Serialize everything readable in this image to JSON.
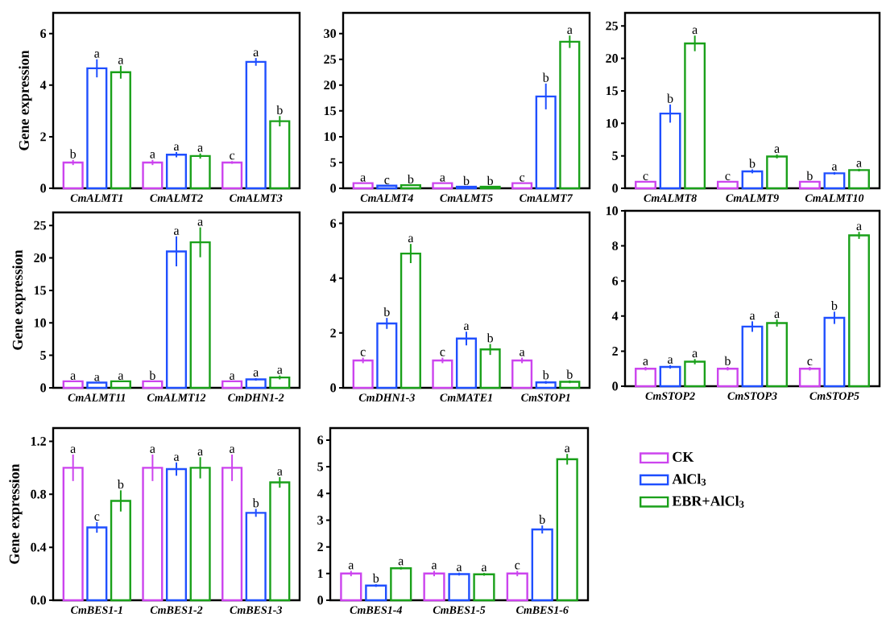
{
  "chart_data": [
    {
      "type": "bar",
      "ylabel": "Gene expression",
      "categories": [
        "CmALMT1",
        "CmALMT2",
        "CmALMT3"
      ],
      "ylim": [
        0,
        6.8
      ],
      "yticks": [
        0,
        2,
        4,
        6
      ],
      "series": [
        {
          "color": "#cc44ee",
          "values": [
            1.0,
            1.0,
            1.0
          ],
          "errors": [
            0.1,
            0.1,
            0.05
          ],
          "value_labels": [
            "b",
            "a",
            "c"
          ]
        },
        {
          "color": "#1f4fff",
          "values": [
            4.65,
            1.3,
            4.9
          ],
          "errors": [
            0.35,
            0.1,
            0.15
          ],
          "value_labels": [
            "a",
            "a",
            "a"
          ]
        },
        {
          "color": "#1aa01a",
          "values": [
            4.5,
            1.25,
            2.6
          ],
          "errors": [
            0.25,
            0.1,
            0.2
          ],
          "value_labels": [
            "a",
            "a",
            "b"
          ]
        }
      ]
    },
    {
      "type": "bar",
      "categories": [
        "CmALMT4",
        "CmALMT5",
        "CmALMT7"
      ],
      "ylim": [
        0,
        34
      ],
      "yticks": [
        0,
        5,
        10,
        15,
        20,
        25,
        30
      ],
      "series": [
        {
          "color": "#cc44ee",
          "values": [
            1.0,
            1.0,
            1.0
          ],
          "errors": [
            null,
            null,
            null
          ],
          "value_labels": [
            "a",
            "a",
            "c"
          ]
        },
        {
          "color": "#1f4fff",
          "values": [
            0.5,
            0.3,
            17.8
          ],
          "errors": [
            null,
            null,
            2.5
          ],
          "value_labels": [
            "c",
            "b",
            "b"
          ]
        },
        {
          "color": "#1aa01a",
          "values": [
            0.6,
            0.3,
            28.4
          ],
          "errors": [
            null,
            null,
            1.2
          ],
          "value_labels": [
            "b",
            "b",
            "a"
          ]
        }
      ]
    },
    {
      "type": "bar",
      "categories": [
        "CmALMT8",
        "CmALMT9",
        "CmALMT10"
      ],
      "ylim": [
        0,
        27
      ],
      "yticks": [
        0,
        5,
        10,
        15,
        20,
        25
      ],
      "series": [
        {
          "color": "#cc44ee",
          "values": [
            1.0,
            1.0,
            1.0
          ],
          "errors": [
            null,
            null,
            null
          ],
          "value_labels": [
            "c",
            "c",
            "b"
          ]
        },
        {
          "color": "#1f4fff",
          "values": [
            11.5,
            2.6,
            2.3
          ],
          "errors": [
            1.4,
            0.3,
            0.2
          ],
          "value_labels": [
            "b",
            "b",
            "a"
          ]
        },
        {
          "color": "#1aa01a",
          "values": [
            22.3,
            4.9,
            2.8
          ],
          "errors": [
            1.2,
            0.3,
            0.2
          ],
          "value_labels": [
            "a",
            "a",
            "a"
          ]
        }
      ]
    },
    {
      "type": "bar",
      "ylabel": "Gene expression",
      "categories": [
        "CmALMT11",
        "CmALMT12",
        "CmDHN1-2"
      ],
      "ylim": [
        0,
        27
      ],
      "yticks": [
        0,
        5,
        10,
        15,
        20,
        25
      ],
      "series": [
        {
          "color": "#cc44ee",
          "values": [
            1.0,
            1.0,
            1.0
          ],
          "errors": [
            null,
            null,
            null
          ],
          "value_labels": [
            "a",
            "b",
            "a"
          ]
        },
        {
          "color": "#1f4fff",
          "values": [
            0.8,
            21.0,
            1.3
          ],
          "errors": [
            null,
            2.3,
            0.2
          ],
          "value_labels": [
            "a",
            "a",
            "a"
          ]
        },
        {
          "color": "#1aa01a",
          "values": [
            1.0,
            22.4,
            1.6
          ],
          "errors": [
            null,
            2.3,
            0.3
          ],
          "value_labels": [
            "a",
            "a",
            "a"
          ]
        }
      ]
    },
    {
      "type": "bar",
      "categories": [
        "CmDHN1-3",
        "CmMATE1",
        "CmSTOP1"
      ],
      "ylim": [
        0,
        6.4
      ],
      "yticks": [
        0,
        2,
        4,
        6
      ],
      "series": [
        {
          "color": "#cc44ee",
          "values": [
            1.0,
            1.0,
            1.0
          ],
          "errors": [
            0.1,
            0.1,
            0.1
          ],
          "value_labels": [
            "c",
            "c",
            "a"
          ]
        },
        {
          "color": "#1f4fff",
          "values": [
            2.35,
            1.8,
            0.2
          ],
          "errors": [
            0.2,
            0.25,
            0.05
          ],
          "value_labels": [
            "b",
            "a",
            "b"
          ]
        },
        {
          "color": "#1aa01a",
          "values": [
            4.9,
            1.4,
            0.22
          ],
          "errors": [
            0.35,
            0.2,
            0.05
          ],
          "value_labels": [
            "a",
            "b",
            "b"
          ]
        }
      ]
    },
    {
      "type": "bar",
      "categories": [
        "CmSTOP2",
        "CmSTOP3",
        "CmSTOP5"
      ],
      "ylim": [
        0,
        10
      ],
      "yticks": [
        0,
        2,
        4,
        6,
        8,
        10
      ],
      "series": [
        {
          "color": "#cc44ee",
          "values": [
            1.0,
            1.0,
            1.0
          ],
          "errors": [
            0.1,
            0.1,
            0.1
          ],
          "value_labels": [
            "a",
            "b",
            "c"
          ]
        },
        {
          "color": "#1f4fff",
          "values": [
            1.1,
            3.4,
            3.9
          ],
          "errors": [
            0.1,
            0.3,
            0.35
          ],
          "value_labels": [
            "a",
            "a",
            "b"
          ]
        },
        {
          "color": "#1aa01a",
          "values": [
            1.4,
            3.6,
            8.6
          ],
          "errors": [
            0.15,
            0.2,
            0.2
          ],
          "value_labels": [
            "a",
            "a",
            "a"
          ]
        }
      ]
    },
    {
      "type": "bar",
      "ylabel": "Gene expression",
      "categories": [
        "CmBES1-1",
        "CmBES1-2",
        "CmBES1-3"
      ],
      "ylim": [
        0,
        1.3
      ],
      "yticks": [
        {
          "value": 0,
          "label": "0.0"
        },
        0.4,
        0.8,
        1.2
      ],
      "series": [
        {
          "color": "#cc44ee",
          "values": [
            1.0,
            1.0,
            1.0
          ],
          "errors": [
            0.1,
            0.1,
            0.1
          ],
          "value_labels": [
            "a",
            "a",
            "a"
          ]
        },
        {
          "color": "#1f4fff",
          "values": [
            0.55,
            0.99,
            0.66
          ],
          "errors": [
            0.04,
            0.05,
            0.03
          ],
          "value_labels": [
            "c",
            "a",
            "b"
          ]
        },
        {
          "color": "#1aa01a",
          "values": [
            0.75,
            1.0,
            0.89
          ],
          "errors": [
            0.08,
            0.08,
            0.04
          ],
          "value_labels": [
            "b",
            "a",
            "a"
          ]
        }
      ]
    },
    {
      "type": "bar",
      "categories": [
        "CmBES1-4",
        "CmBES1-5",
        "CmBES1-6"
      ],
      "ylim": [
        0,
        6.45
      ],
      "yticks": [
        0,
        1,
        2,
        3,
        4,
        5,
        6
      ],
      "legend": "right",
      "series": [
        {
          "name": "CK",
          "color": "#cc44ee",
          "values": [
            1.0,
            1.0,
            1.0
          ],
          "errors": [
            0.1,
            0.1,
            0.1
          ],
          "value_labels": [
            "a",
            "a",
            "c"
          ]
        },
        {
          "name": "AlCl$_{3}$",
          "color": "#1f4fff",
          "values": [
            0.55,
            0.98,
            2.65
          ],
          "errors": [
            0.05,
            0.05,
            0.15
          ],
          "value_labels": [
            "b",
            "a",
            "b"
          ]
        },
        {
          "name": "EBR+AlCl$_{3}$",
          "color": "#1aa01a",
          "values": [
            1.2,
            0.97,
            5.28
          ],
          "errors": [
            0.05,
            0.05,
            0.2
          ],
          "value_labels": [
            "a",
            "a",
            "a"
          ]
        }
      ]
    }
  ]
}
